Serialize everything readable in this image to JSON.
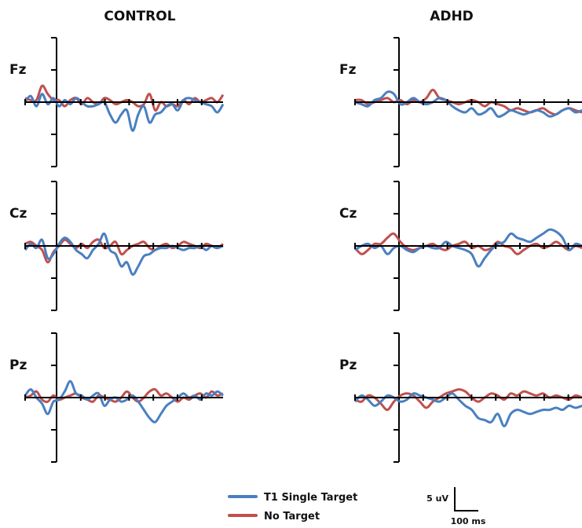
{
  "chart_data": {
    "type": "line",
    "x_unit": "ms",
    "y_unit": "uV",
    "colors": {
      "T1 Single Target": "#4a7fc1",
      "No Target": "#c0504d",
      "axis": "#000000"
    },
    "legend": {
      "placement": "bottom-center",
      "entries": [
        {
          "label": "T1 Single Target",
          "color": "#4a7fc1"
        },
        {
          "label": "No Target",
          "color": "#c0504d"
        }
      ]
    },
    "scale_bar": {
      "y_label": "5 uV",
      "x_label": "100 ms",
      "y_value_uv": 5,
      "x_value_ms": 100
    },
    "groups": [
      {
        "title": "CONTROL",
        "panels": [
          {
            "electrode": "Fz",
            "blue": [
              0,
              1.5,
              -1,
              2,
              -0.5,
              1,
              -1,
              0.5,
              -0.5,
              1,
              0,
              -1,
              -1,
              -0.5,
              0,
              -3,
              -5,
              -3,
              -2,
              -7,
              -3,
              -1,
              -5,
              -3,
              -2.5,
              -1,
              -0.5,
              -2,
              0.5,
              1,
              0.5,
              0,
              -0.5,
              -1,
              -2.5,
              -0.5
            ],
            "red": [
              1,
              0.5,
              0.5,
              4,
              2,
              0.5,
              0.5,
              -1,
              0.5,
              1,
              -0.5,
              1,
              0,
              -0.5,
              1,
              0.5,
              -0.5,
              0,
              0.5,
              0,
              -1,
              -0.5,
              2,
              -2,
              0,
              -1,
              -0.5,
              -1,
              0.5,
              -0.5,
              1,
              0,
              0.5,
              1,
              0,
              1.8
            ]
          },
          {
            "electrode": "Cz",
            "blue": [
              -1,
              0.5,
              -0.5,
              1.5,
              -3,
              -2,
              0.5,
              2,
              1,
              -1,
              -2,
              -3,
              -1,
              0.5,
              3,
              -1,
              -2,
              -5,
              -4,
              -7,
              -5,
              -2.5,
              -2,
              -1,
              -0.5,
              -0.5,
              0,
              -0.5,
              -1,
              -0.5,
              -0.5,
              0,
              -1,
              0,
              -0.5,
              0
            ],
            "red": [
              0.5,
              1,
              0,
              -1,
              -4,
              -1.5,
              0,
              1.5,
              0.5,
              -0.5,
              0.5,
              -0.5,
              1,
              1.5,
              -0.5,
              0,
              1,
              -2,
              -1,
              0,
              0.5,
              1,
              -0.5,
              -1,
              0,
              0.5,
              -0.5,
              0,
              1,
              0.5,
              0,
              -0.5,
              0.5,
              0,
              -0.5,
              0.5
            ]
          },
          {
            "electrode": "Pz",
            "blue": [
              0.5,
              2,
              0,
              -1.5,
              -4,
              -1,
              -0.5,
              1.5,
              4,
              1,
              0.5,
              -0.5,
              0.5,
              1,
              -2,
              -0.5,
              0,
              -1,
              -0.5,
              0.5,
              -1,
              -3,
              -5,
              -6,
              -4,
              -2,
              -1,
              0,
              1,
              0,
              0.5,
              -0.5,
              1,
              0.5,
              1.5,
              0.5
            ],
            "red": [
              0,
              0.5,
              1.5,
              -0.5,
              -1,
              0.5,
              -0.5,
              0,
              0.5,
              1,
              0,
              -0.5,
              -1,
              0.5,
              0,
              -0.5,
              -1,
              0,
              1.5,
              0,
              -1,
              0,
              1.5,
              2,
              0.5,
              1,
              0,
              -1,
              0,
              -0.5,
              0.5,
              1,
              0,
              1.5,
              0.5,
              1
            ]
          }
        ]
      },
      {
        "title": "ADHD",
        "panels": [
          {
            "electrode": "Fz",
            "blue": [
              0,
              -0.5,
              -1,
              0.5,
              1,
              2.5,
              2,
              -0.5,
              0,
              1,
              0,
              -0.5,
              0,
              1,
              0.5,
              -1,
              -2,
              -2.5,
              -1.5,
              -3,
              -2.5,
              -1.5,
              -3.5,
              -3,
              -2,
              -2.5,
              -3,
              -2.5,
              -2,
              -2.5,
              -3.5,
              -3,
              -2,
              -1.5,
              -2.5,
              -2
            ],
            "red": [
              0.5,
              0.5,
              -0.5,
              0,
              0.5,
              1,
              0,
              0.5,
              -0.5,
              0.5,
              0,
              1,
              3,
              1,
              0.5,
              0,
              -0.5,
              0,
              0.5,
              0,
              -1,
              0,
              -0.5,
              -1,
              -2,
              -1.5,
              -2,
              -2.5,
              -2,
              -1.5,
              -2.5,
              -3,
              -2,
              -1.5,
              -2,
              -2.5
            ]
          },
          {
            "electrode": "Cz",
            "blue": [
              -1,
              0,
              0.5,
              -0.5,
              0,
              -2,
              -0.5,
              0,
              -1,
              -1.5,
              -0.5,
              0,
              -0.5,
              -0.5,
              1,
              0,
              -0.5,
              -1,
              -2,
              -5,
              -3,
              -1,
              0.5,
              1,
              3,
              2,
              1.5,
              1,
              2,
              3,
              4,
              3.5,
              2,
              -1,
              0.5,
              0
            ],
            "red": [
              -0.5,
              -2,
              -1,
              0.5,
              0.5,
              2,
              3,
              1,
              -0.5,
              -1,
              -0.5,
              0,
              0.5,
              -0.5,
              -1,
              0,
              0.5,
              1,
              -0.5,
              0,
              -1,
              -0.5,
              1,
              0,
              -0.5,
              -2,
              -1,
              0,
              0.5,
              -0.5,
              0,
              1,
              0,
              -1,
              0,
              -0.5
            ]
          },
          {
            "electrode": "Pz",
            "blue": [
              -1,
              0.5,
              -0.5,
              -2,
              -1,
              0.5,
              0,
              -1,
              -0.5,
              1,
              0.5,
              0,
              -0.5,
              -1,
              0,
              1,
              -0.5,
              -2,
              -3,
              -5,
              -5.5,
              -6,
              -4,
              -7,
              -4,
              -3,
              -3.5,
              -4,
              -3.5,
              -3,
              -3,
              -2.5,
              -3,
              -2,
              -2.5,
              -2
            ],
            "red": [
              -0.5,
              -1,
              0.5,
              0,
              -1.5,
              -3,
              -1,
              0.5,
              1,
              0.5,
              -1,
              -2.5,
              -1,
              0,
              1,
              1.5,
              2,
              1.5,
              0,
              -1,
              0,
              1,
              0.5,
              -0.5,
              1,
              0.5,
              1.5,
              1,
              0.5,
              1,
              0,
              0.5,
              0,
              -0.5,
              0.5,
              0
            ]
          }
        ]
      }
    ]
  }
}
